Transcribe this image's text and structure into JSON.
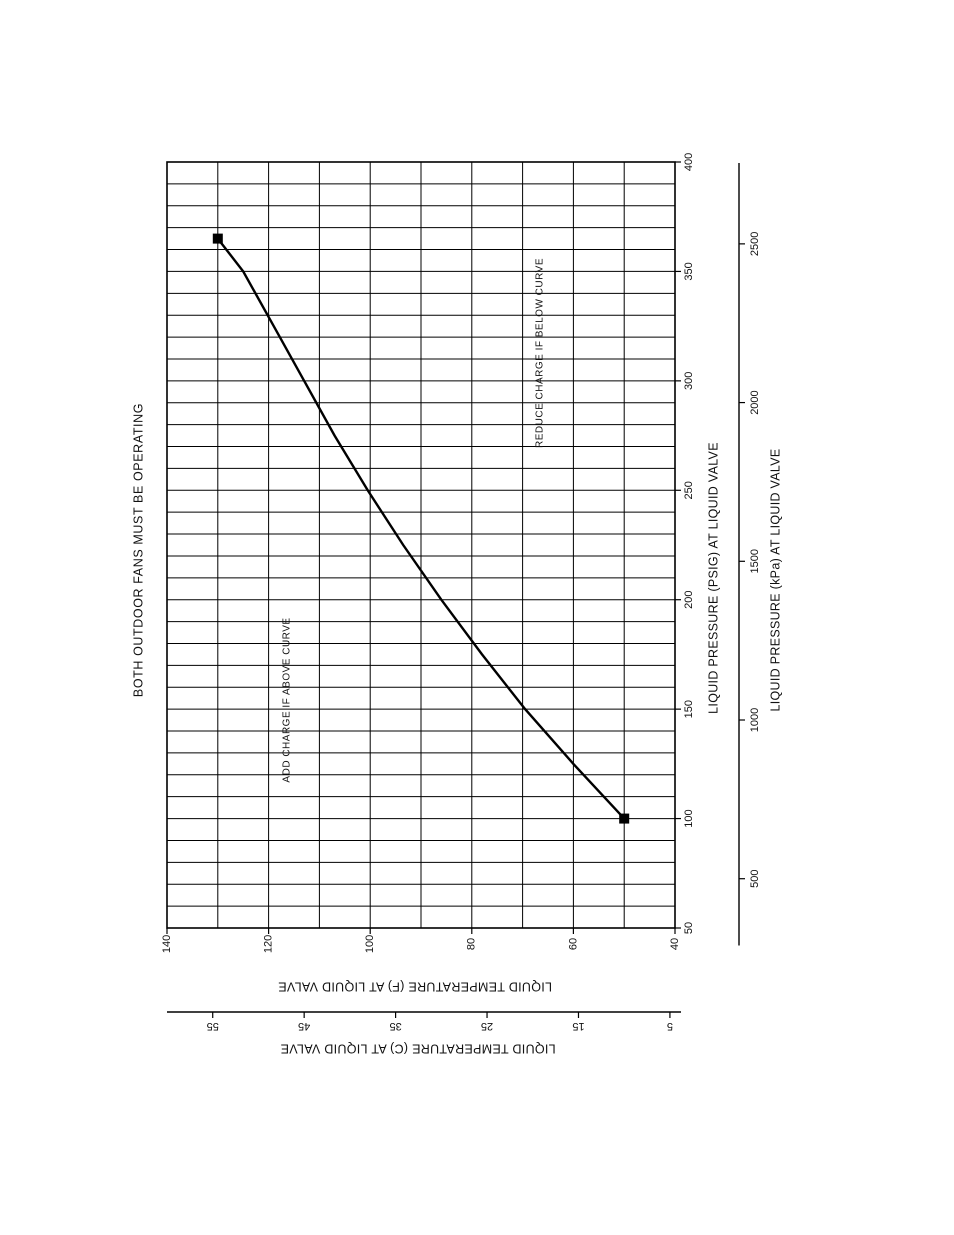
{
  "chart_data": {
    "type": "line",
    "title": "BOTH OUTDOOR FANS MUST BE OPERATING",
    "xlabel": "LIQUID PRESSURE (PSIG) AT LIQUID VALVE",
    "xlabel_secondary": "LIQUID PRESSURE (kPa) AT LIQUID VALVE",
    "ylabel": "LIQUID TEMPERATURE (F) AT LIQUID VALVE",
    "ylabel_secondary": "LIQUID TEMPERATURE (C) AT LIQUID VALVE",
    "xlim": [
      50,
      400
    ],
    "ylim": [
      40,
      140
    ],
    "x_ticks": [
      "50",
      "100",
      "150",
      "200",
      "250",
      "300",
      "350",
      "400"
    ],
    "y_ticks": [
      "40",
      "60",
      "80",
      "100",
      "120",
      "140"
    ],
    "x2_ticks": [
      "500",
      "1000",
      "1500",
      "2000",
      "2500"
    ],
    "y2_ticks": [
      "5",
      "15",
      "25",
      "35",
      "45",
      "55"
    ],
    "grid": true,
    "orientation": "rotated-90",
    "annotations": [
      "ADD CHARGE IF ABOVE CURVE",
      "REDUCE CHARGE IF BELOW CURVE"
    ],
    "series": [
      {
        "x": [
          100,
          125,
          150,
          175,
          200,
          225,
          250,
          275,
          300,
          325,
          350,
          365
        ],
        "y": [
          50,
          60,
          69.5,
          78,
          86,
          93.5,
          100.5,
          107,
          113,
          119,
          125,
          130
        ]
      }
    ],
    "endpoints": [
      [
        100,
        50
      ],
      [
        365,
        130
      ]
    ]
  }
}
